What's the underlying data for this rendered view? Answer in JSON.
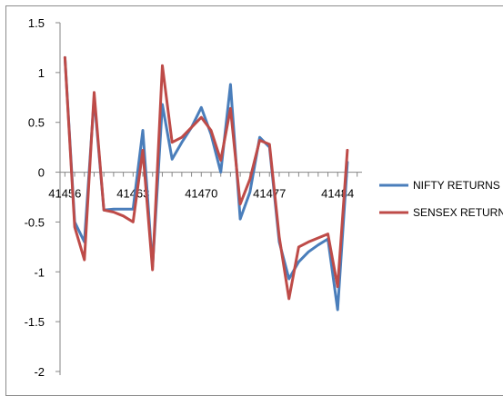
{
  "chart_data": {
    "type": "line",
    "title": "",
    "xlabel": "",
    "ylabel": "",
    "ylim": [
      -2,
      1.5
    ],
    "y_ticks": [
      1.5,
      1,
      0.5,
      0,
      -0.5,
      -1,
      -1.5,
      -2
    ],
    "x_tick_labels": [
      "41456",
      "41463",
      "41470",
      "41477",
      "41484"
    ],
    "x_tick_values": [
      41456,
      41463,
      41470,
      41477,
      41484
    ],
    "grid": false,
    "legend_position": "right",
    "x": [
      41456,
      41457,
      41458,
      41459,
      41460,
      41461,
      41462,
      41463,
      41464,
      41465,
      41466,
      41467,
      41468,
      41469,
      41470,
      41471,
      41472,
      41473,
      41474,
      41475,
      41476,
      41477,
      41478,
      41479,
      41480,
      41481,
      41482,
      41483,
      41484,
      41485,
      41486
    ],
    "series": [
      {
        "name": "NIFTY RETURNS",
        "color": "#4a7ebb",
        "values": [
          1.15,
          -0.5,
          -0.7,
          0.75,
          -0.38,
          -0.37,
          -0.37,
          -0.37,
          0.42,
          -0.95,
          0.68,
          0.13,
          0.3,
          0.45,
          0.65,
          0.38,
          0.0,
          0.88,
          -0.47,
          -0.2,
          0.35,
          0.25,
          -0.7,
          -1.07,
          -0.9,
          -0.8,
          -0.73,
          -0.67,
          -1.38,
          0.1,
          null
        ]
      },
      {
        "name": "SENSEX RETURNS",
        "color": "#be4b48",
        "values": [
          1.15,
          -0.55,
          -0.88,
          0.8,
          -0.38,
          -0.4,
          -0.44,
          -0.5,
          0.22,
          -0.98,
          1.07,
          0.3,
          0.35,
          0.45,
          0.55,
          0.42,
          0.12,
          0.64,
          -0.32,
          -0.07,
          0.32,
          0.28,
          -0.65,
          -1.27,
          -0.75,
          -0.7,
          -0.66,
          -0.62,
          -1.15,
          0.22,
          null
        ]
      }
    ]
  }
}
